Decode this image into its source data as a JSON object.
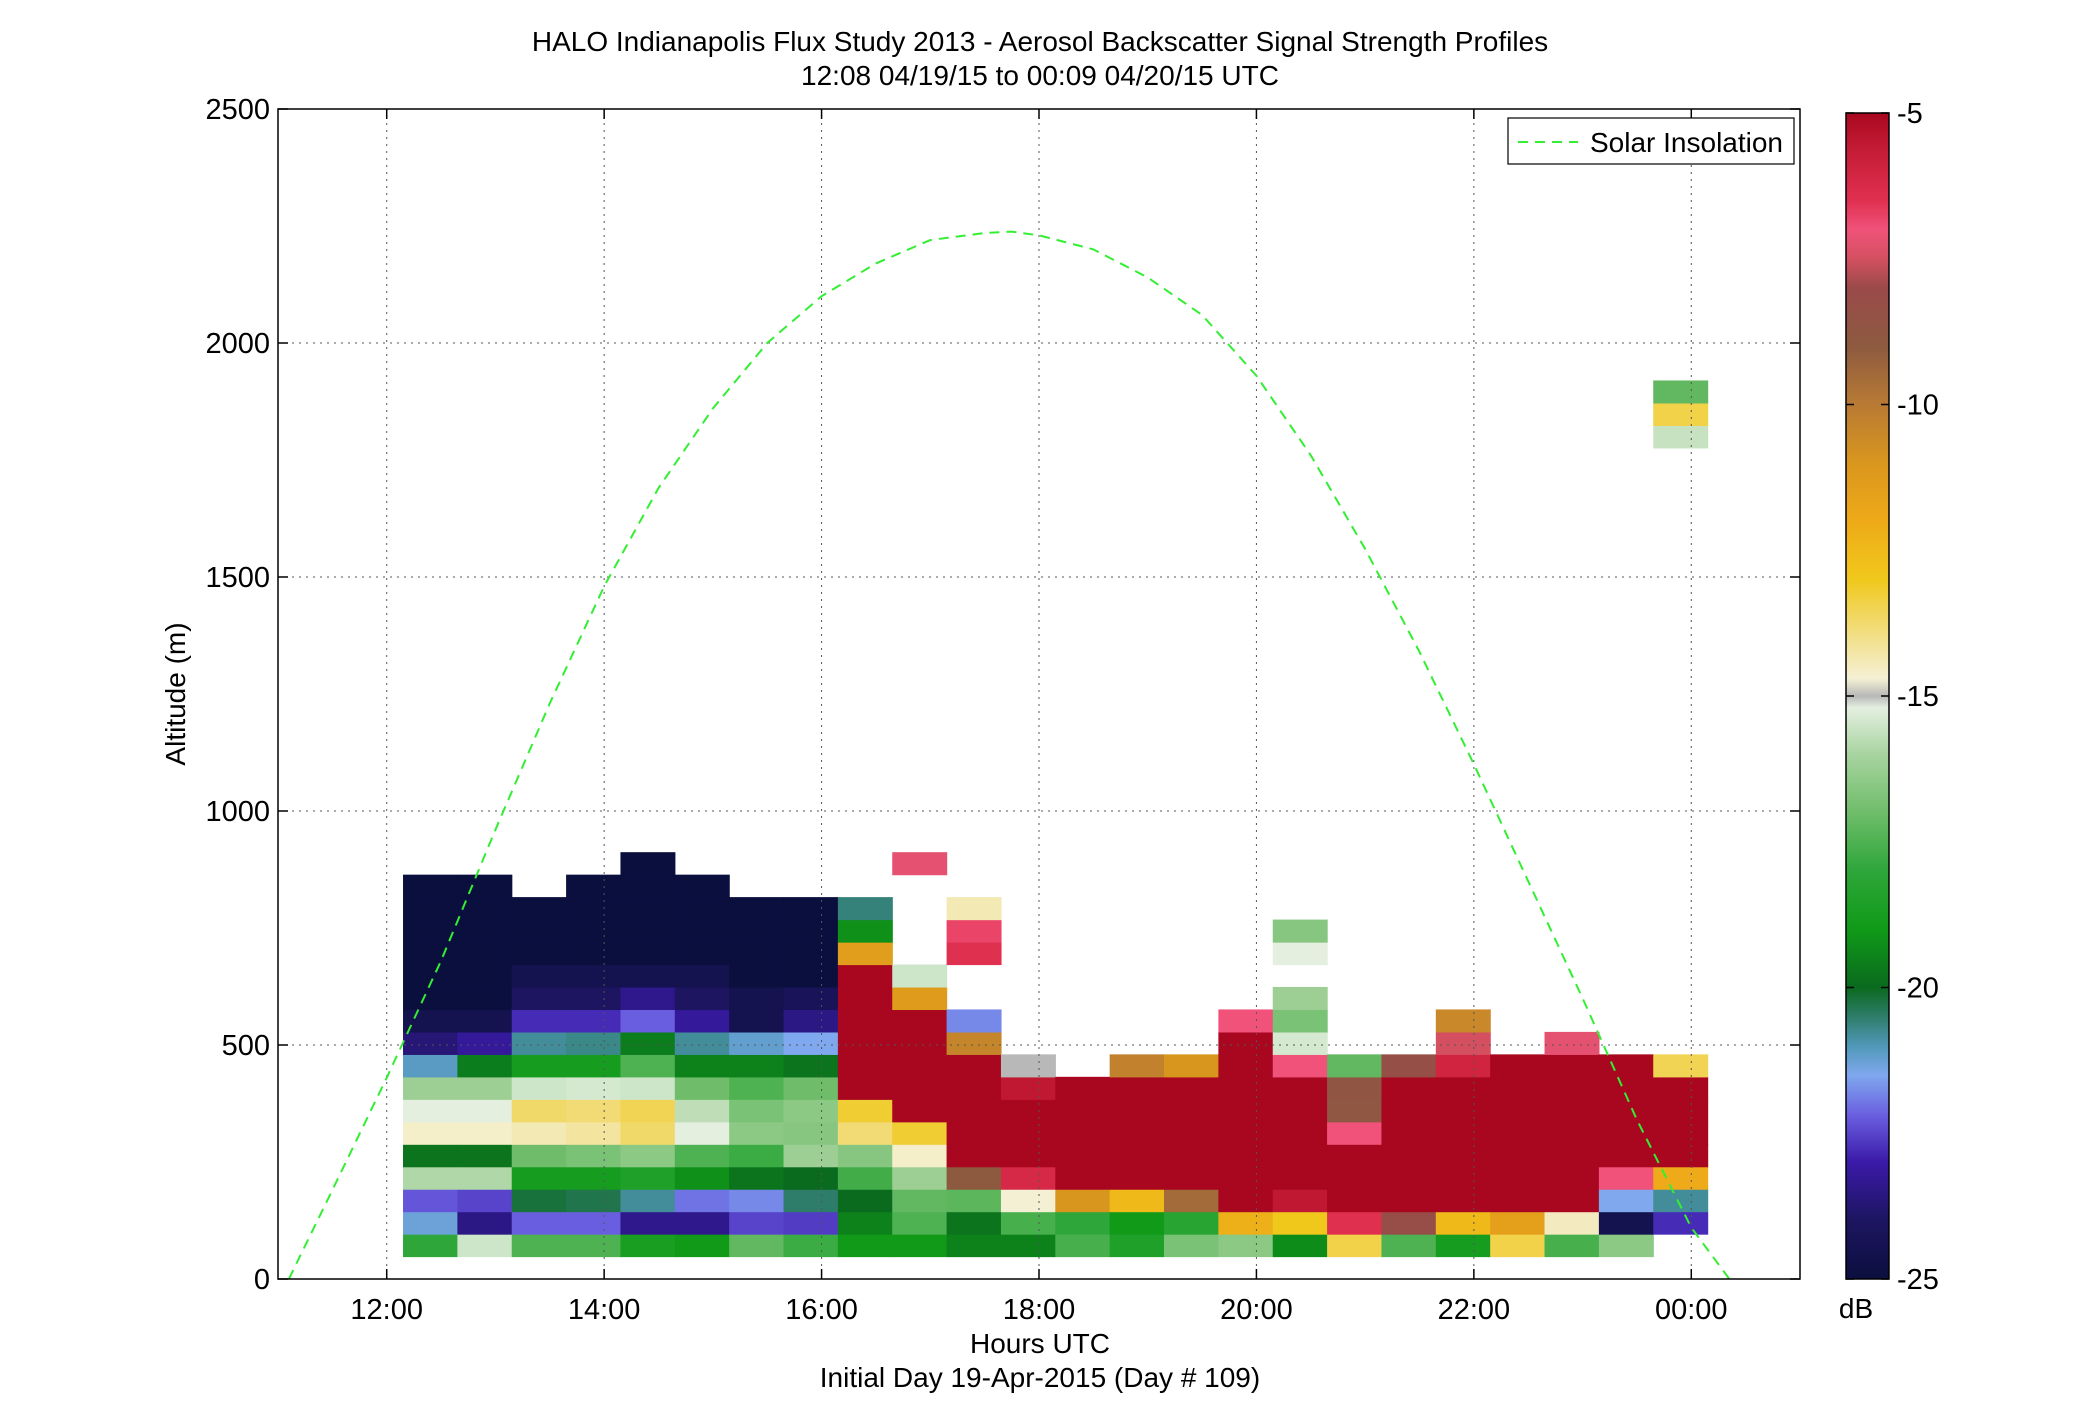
{
  "chart_data": {
    "type": "heatmap",
    "title": [
      "HALO Indianapolis Flux Study 2013 - Aerosol Backscatter Signal Strength Profiles",
      "12:08 04/19/15 to 00:09 04/20/15  UTC"
    ],
    "xlabel": "Hours UTC",
    "xlabel2": "Initial Day 19-Apr-2015 (Day # 109)",
    "ylabel": "Altitude (m)",
    "xlim": [
      11.0,
      25.0
    ],
    "ylim": [
      0,
      2500
    ],
    "x_ticks": [
      12,
      14,
      16,
      18,
      20,
      22,
      24
    ],
    "x_tick_labels": [
      "12:00",
      "14:00",
      "16:00",
      "18:00",
      "20:00",
      "22:00",
      "00:00"
    ],
    "y_ticks": [
      0,
      500,
      1000,
      1500,
      2000,
      2500
    ],
    "y_tick_labels": [
      "0",
      "500",
      "1000",
      "1500",
      "2000",
      "2500"
    ],
    "grid": true,
    "legend": {
      "position": "top-right",
      "entries": [
        "Solar Insolation"
      ]
    },
    "colorbar": {
      "label": "dB",
      "range": [
        -25,
        -5
      ],
      "ticks": [
        -5,
        -10,
        -15,
        -20,
        -25
      ],
      "tick_labels": [
        "-5",
        "-10",
        "-15",
        "-20",
        "-25"
      ]
    },
    "bin_width_hours": 0.5,
    "bin_height_m": 48,
    "bin_start_hour": 12.15,
    "bin_start_alt_m": 48,
    "columns": [
      {
        "x": 12.4,
        "values": [
          -18,
          -21.3,
          -22.3,
          -15.9,
          -19.8,
          -14.6,
          -15.2,
          -16.2,
          -21.1,
          -23.7,
          -24.5,
          -25,
          -25,
          -25,
          -25,
          -25,
          -25
        ]
      },
      {
        "x": 12.9,
        "values": [
          -15.5,
          -23.5,
          -22.5,
          -15.9,
          -19.8,
          -14.6,
          -15.2,
          -16.2,
          -19.6,
          -23.2,
          -24.5,
          -25,
          -25,
          -25,
          -25,
          -25,
          -25
        ]
      },
      {
        "x": 13.4,
        "values": [
          -17.5,
          -22.2,
          -20.2,
          -18.8,
          -17,
          -14.4,
          -13.7,
          -15.5,
          -18.8,
          -20.8,
          -22.8,
          -24,
          -24.5,
          -25,
          -25,
          -25
        ]
      },
      {
        "x": 13.9,
        "values": [
          -17.5,
          -22.2,
          -20.3,
          -18.8,
          -16.8,
          -14.2,
          -13.8,
          -15.4,
          -18.8,
          -20.7,
          -22.8,
          -24,
          -24.5,
          -25,
          -25,
          -25,
          -25
        ]
      },
      {
        "x": 14.4,
        "values": [
          -18.7,
          -23.4,
          -20.8,
          -18.5,
          -16.5,
          -13.7,
          -13.5,
          -15.5,
          -17.5,
          -19.6,
          -22.2,
          -23.4,
          -24.5,
          -25,
          -25,
          -25,
          -25,
          -25
        ]
      },
      {
        "x": 14.9,
        "values": [
          -19,
          -23.4,
          -22,
          -19.2,
          -17.5,
          -15.2,
          -15.7,
          -17,
          -19.5,
          -20.8,
          -23.2,
          -24,
          -24.5,
          -25,
          -25,
          -25,
          -25
        ]
      },
      {
        "x": 15.4,
        "values": [
          -17.2,
          -22.5,
          -21.8,
          -19.8,
          -17.8,
          -16.5,
          -16.8,
          -17.5,
          -19.5,
          -21.2,
          -24.5,
          -24.5,
          -25,
          -25,
          -25,
          -25
        ]
      },
      {
        "x": 15.9,
        "values": [
          -17.8,
          -22.6,
          -20.5,
          -20,
          -16.2,
          -16.6,
          -16.5,
          -17,
          -19.8,
          -21.5,
          -23.5,
          -24.2,
          -25,
          -25,
          -25,
          -25
        ]
      },
      {
        "x": 16.4,
        "values": [
          -19,
          -19.5,
          -20,
          -17.7,
          -16.6,
          -13.8,
          -13.2,
          -5,
          -5,
          -5,
          -5,
          -5,
          -5,
          -11.4,
          -19.2,
          -20.6
        ]
      },
      {
        "x": 16.9,
        "values": [
          -19,
          -17.5,
          -17.2,
          -16.2,
          -14.6,
          -13.2,
          -5,
          -5,
          -5,
          -5,
          -5,
          -11.3,
          -15.5,
          null,
          null,
          null,
          null,
          -7.2,
          null
        ]
      },
      {
        "x": 17.4,
        "values": [
          -19.5,
          -19.8,
          -17.3,
          -9,
          -5,
          -5,
          -5,
          -5,
          -5,
          -10.4,
          -21.8,
          null,
          null,
          -6.5,
          -6.8,
          -14.4
        ]
      },
      {
        "x": 17.9,
        "values": [
          -19.5,
          -17.6,
          -14.7,
          -6.2,
          -5,
          -5,
          -5,
          -5.5,
          -15
        ]
      },
      {
        "x": 18.4,
        "values": [
          -17.6,
          -18,
          -11,
          -5,
          -5,
          -5,
          -5,
          -5
        ]
      },
      {
        "x": 18.9,
        "values": [
          -18.5,
          -19,
          -12.5,
          -5,
          -5,
          -5,
          -5,
          -5,
          -10.3
        ]
      },
      {
        "x": 19.4,
        "values": [
          -16.8,
          -18.2,
          -9.5,
          -5,
          -5,
          -5,
          -5,
          -5,
          -11
        ]
      },
      {
        "x": 19.9,
        "values": [
          -16.5,
          -12.2,
          -5,
          -5,
          -5,
          -5,
          -5,
          -5,
          -5,
          -5,
          -7
        ]
      },
      {
        "x": 20.4,
        "values": [
          -19.3,
          -13,
          -5.5,
          -5,
          -5,
          -5,
          -5,
          -5,
          -7,
          -15.4,
          -16.8,
          -16.2,
          null,
          -15.2,
          -16.6
        ]
      },
      {
        "x": 20.9,
        "values": [
          -13.4,
          -6.5,
          -5,
          -5,
          -5,
          -7,
          -8.8,
          -8.7,
          -17.2
        ]
      },
      {
        "x": 21.4,
        "values": [
          -17.5,
          -8.2,
          -5,
          -5,
          -5,
          -5,
          -5,
          -5,
          -8.3
        ]
      },
      {
        "x": 21.9,
        "values": [
          -18.8,
          -12.5,
          -5,
          -5,
          -5,
          -5,
          -5,
          -5,
          -6,
          -7.5,
          -10.5
        ]
      },
      {
        "x": 22.4,
        "values": [
          -13.4,
          -11.5,
          -5,
          -5,
          -5,
          -5,
          -5,
          -5,
          -5
        ]
      },
      {
        "x": 22.9,
        "values": [
          -17.6,
          -14.5,
          -5,
          -5,
          -5,
          -5,
          -5,
          -5,
          -5,
          -7.2
        ]
      },
      {
        "x": 23.4,
        "values": [
          -16.5,
          -24.5,
          -21.5,
          -7,
          -5,
          -5,
          -5,
          -5,
          -5
        ]
      },
      {
        "x": 23.9,
        "values": [
          null,
          -22.8,
          -20.8,
          -12,
          -5,
          -5,
          -5,
          -5,
          -13.5,
          null,
          null,
          null,
          null,
          null,
          null,
          null,
          null,
          null,
          null,
          null,
          null,
          null,
          null,
          null,
          null,
          null,
          null,
          null,
          null,
          null,
          null,
          null,
          null,
          null,
          null,
          null,
          -15.6,
          -13.4,
          -17.2
        ]
      }
    ],
    "solar_insolation": {
      "name": "Solar Insolation",
      "color": "#33ee33",
      "x": [
        11.1,
        11.5,
        12.0,
        12.5,
        13.0,
        13.5,
        14.0,
        14.5,
        15.0,
        15.5,
        16.0,
        16.5,
        17.0,
        17.5,
        17.75,
        18.0,
        18.5,
        19.0,
        19.5,
        20.0,
        20.5,
        21.0,
        21.5,
        22.0,
        22.5,
        23.0,
        23.5,
        24.0,
        24.35
      ],
      "y": [
        0,
        190,
        430,
        680,
        960,
        1230,
        1480,
        1690,
        1860,
        2000,
        2100,
        2170,
        2220,
        2235,
        2238,
        2230,
        2200,
        2140,
        2060,
        1930,
        1760,
        1560,
        1340,
        1100,
        850,
        600,
        340,
        110,
        0
      ]
    }
  }
}
